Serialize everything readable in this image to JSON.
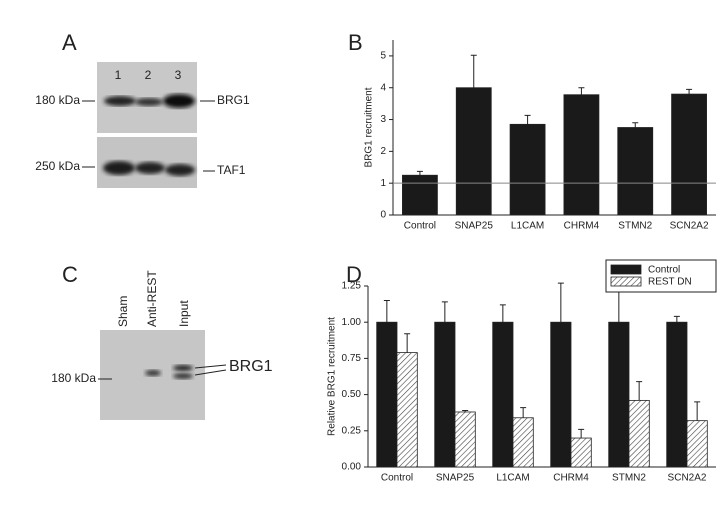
{
  "panel_labels": [
    "A",
    "B",
    "C",
    "D"
  ],
  "blot_a": {
    "lanes": [
      "1",
      "2",
      "3"
    ],
    "markers": [
      "180 kDa",
      "250 kDa"
    ],
    "bands": [
      "BRG1",
      "TAF1"
    ]
  },
  "blot_c": {
    "lanes": [
      "Sham",
      "Anti-REST",
      "Input"
    ],
    "marker": "180 kDa",
    "band": "BRG1"
  },
  "chart_data": [
    {
      "type": "bar",
      "ylabel": "BRG1 recruitment",
      "categories": [
        "Control",
        "SNAP25",
        "L1CAM",
        "CHRM4",
        "STMN2",
        "SCN2A2"
      ],
      "values": [
        1.25,
        4.0,
        2.85,
        3.78,
        2.75,
        3.8
      ],
      "errors": [
        0.12,
        1.02,
        0.28,
        0.22,
        0.15,
        0.15
      ],
      "color": "#1a1a1a",
      "ylim": [
        0,
        5.5
      ],
      "yticks": [
        0,
        1,
        2,
        3,
        4,
        5
      ],
      "hline": 1
    },
    {
      "type": "bar",
      "ylabel": "Relative BRG1 recruitment",
      "categories": [
        "Control",
        "SNAP25",
        "L1CAM",
        "CHRM4",
        "STMN2",
        "SCN2A2"
      ],
      "series": [
        {
          "name": "Control",
          "color": "#1a1a1a",
          "values": [
            1.0,
            1.0,
            1.0,
            1.0,
            1.0,
            1.0
          ],
          "errors": [
            0.15,
            0.14,
            0.12,
            0.27,
            0.25,
            0.04
          ]
        },
        {
          "name": "REST DN",
          "color": "#ffffff",
          "pattern": "hatch",
          "values": [
            0.79,
            0.38,
            0.34,
            0.2,
            0.46,
            0.32
          ],
          "errors": [
            0.13,
            0.01,
            0.07,
            0.06,
            0.13,
            0.13
          ]
        }
      ],
      "ylim": [
        0,
        1.25
      ],
      "yticks": [
        {
          "value": 0,
          "label": "0.00"
        },
        {
          "value": 0.25,
          "label": "0.25"
        },
        {
          "value": 0.5,
          "label": "0.50"
        },
        {
          "value": 0.75,
          "label": "0.75"
        },
        {
          "value": 1,
          "label": "1.00"
        },
        {
          "value": 1.25,
          "label": "1.25"
        }
      ],
      "legend": "top-right"
    }
  ]
}
